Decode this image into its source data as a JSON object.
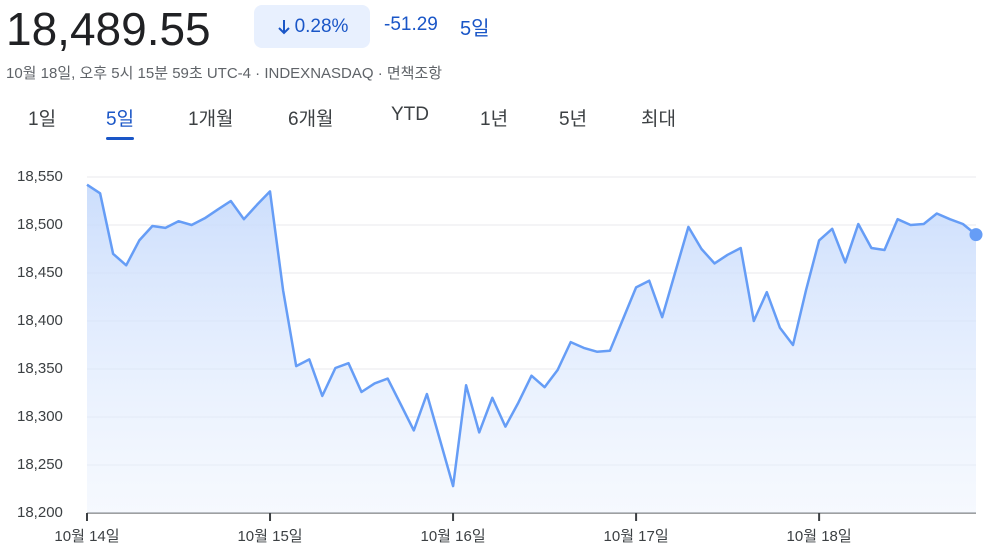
{
  "header": {
    "price": "18,489.55",
    "change_percent": "0.28%",
    "change": "-51.29",
    "period": "5일",
    "subtitle": "10월 18일, 오후 5시 15분 59초 UTC-4 · INDEXNASDAQ · 면책조항"
  },
  "tabs": [
    "1일",
    "5일",
    "1개월",
    "6개월",
    "YTD",
    "1년",
    "5년",
    "최대"
  ],
  "chart_data": {
    "type": "line",
    "color": "#669df6",
    "values": [
      18542,
      18533,
      18470,
      18458,
      18484,
      18499,
      18497,
      18504,
      18500,
      18507,
      18516,
      18525,
      18506,
      18521,
      18535,
      18432,
      18353,
      18360,
      18322,
      18351,
      18356,
      18326,
      18335,
      18340,
      18313,
      18286,
      18324,
      18276,
      18228,
      18333,
      18284,
      18320,
      18290,
      18315,
      18343,
      18331,
      18349,
      18378,
      18372,
      18368,
      18369,
      18402,
      18435,
      18442,
      18404,
      18451,
      18498,
      18475,
      18460,
      18469,
      18476,
      18400,
      18430,
      18393,
      18375,
      18432,
      18484,
      18496,
      18461,
      18501,
      18476,
      18474,
      18506,
      18500,
      18501,
      18512,
      18506,
      18501,
      18490
    ],
    "ylim": [
      18200,
      18550
    ],
    "yticks": [
      {
        "value": 18200,
        "label": "18,200"
      },
      {
        "value": 18250,
        "label": "18,250"
      },
      {
        "value": 18300,
        "label": "18,300"
      },
      {
        "value": 18350,
        "label": "18,350"
      },
      {
        "value": 18400,
        "label": "18,400"
      },
      {
        "value": 18450,
        "label": "18,450"
      },
      {
        "value": 18500,
        "label": "18,500"
      },
      {
        "value": 18550,
        "label": "18,550"
      }
    ],
    "xticks": [
      {
        "value": 0,
        "label": "10월 14일"
      },
      {
        "value": 14,
        "label": "10월 15일"
      },
      {
        "value": 28,
        "label": "10월 16일"
      },
      {
        "value": 42,
        "label": "10월 17일"
      },
      {
        "value": 56,
        "label": "10월 18일"
      }
    ],
    "grid": true
  }
}
